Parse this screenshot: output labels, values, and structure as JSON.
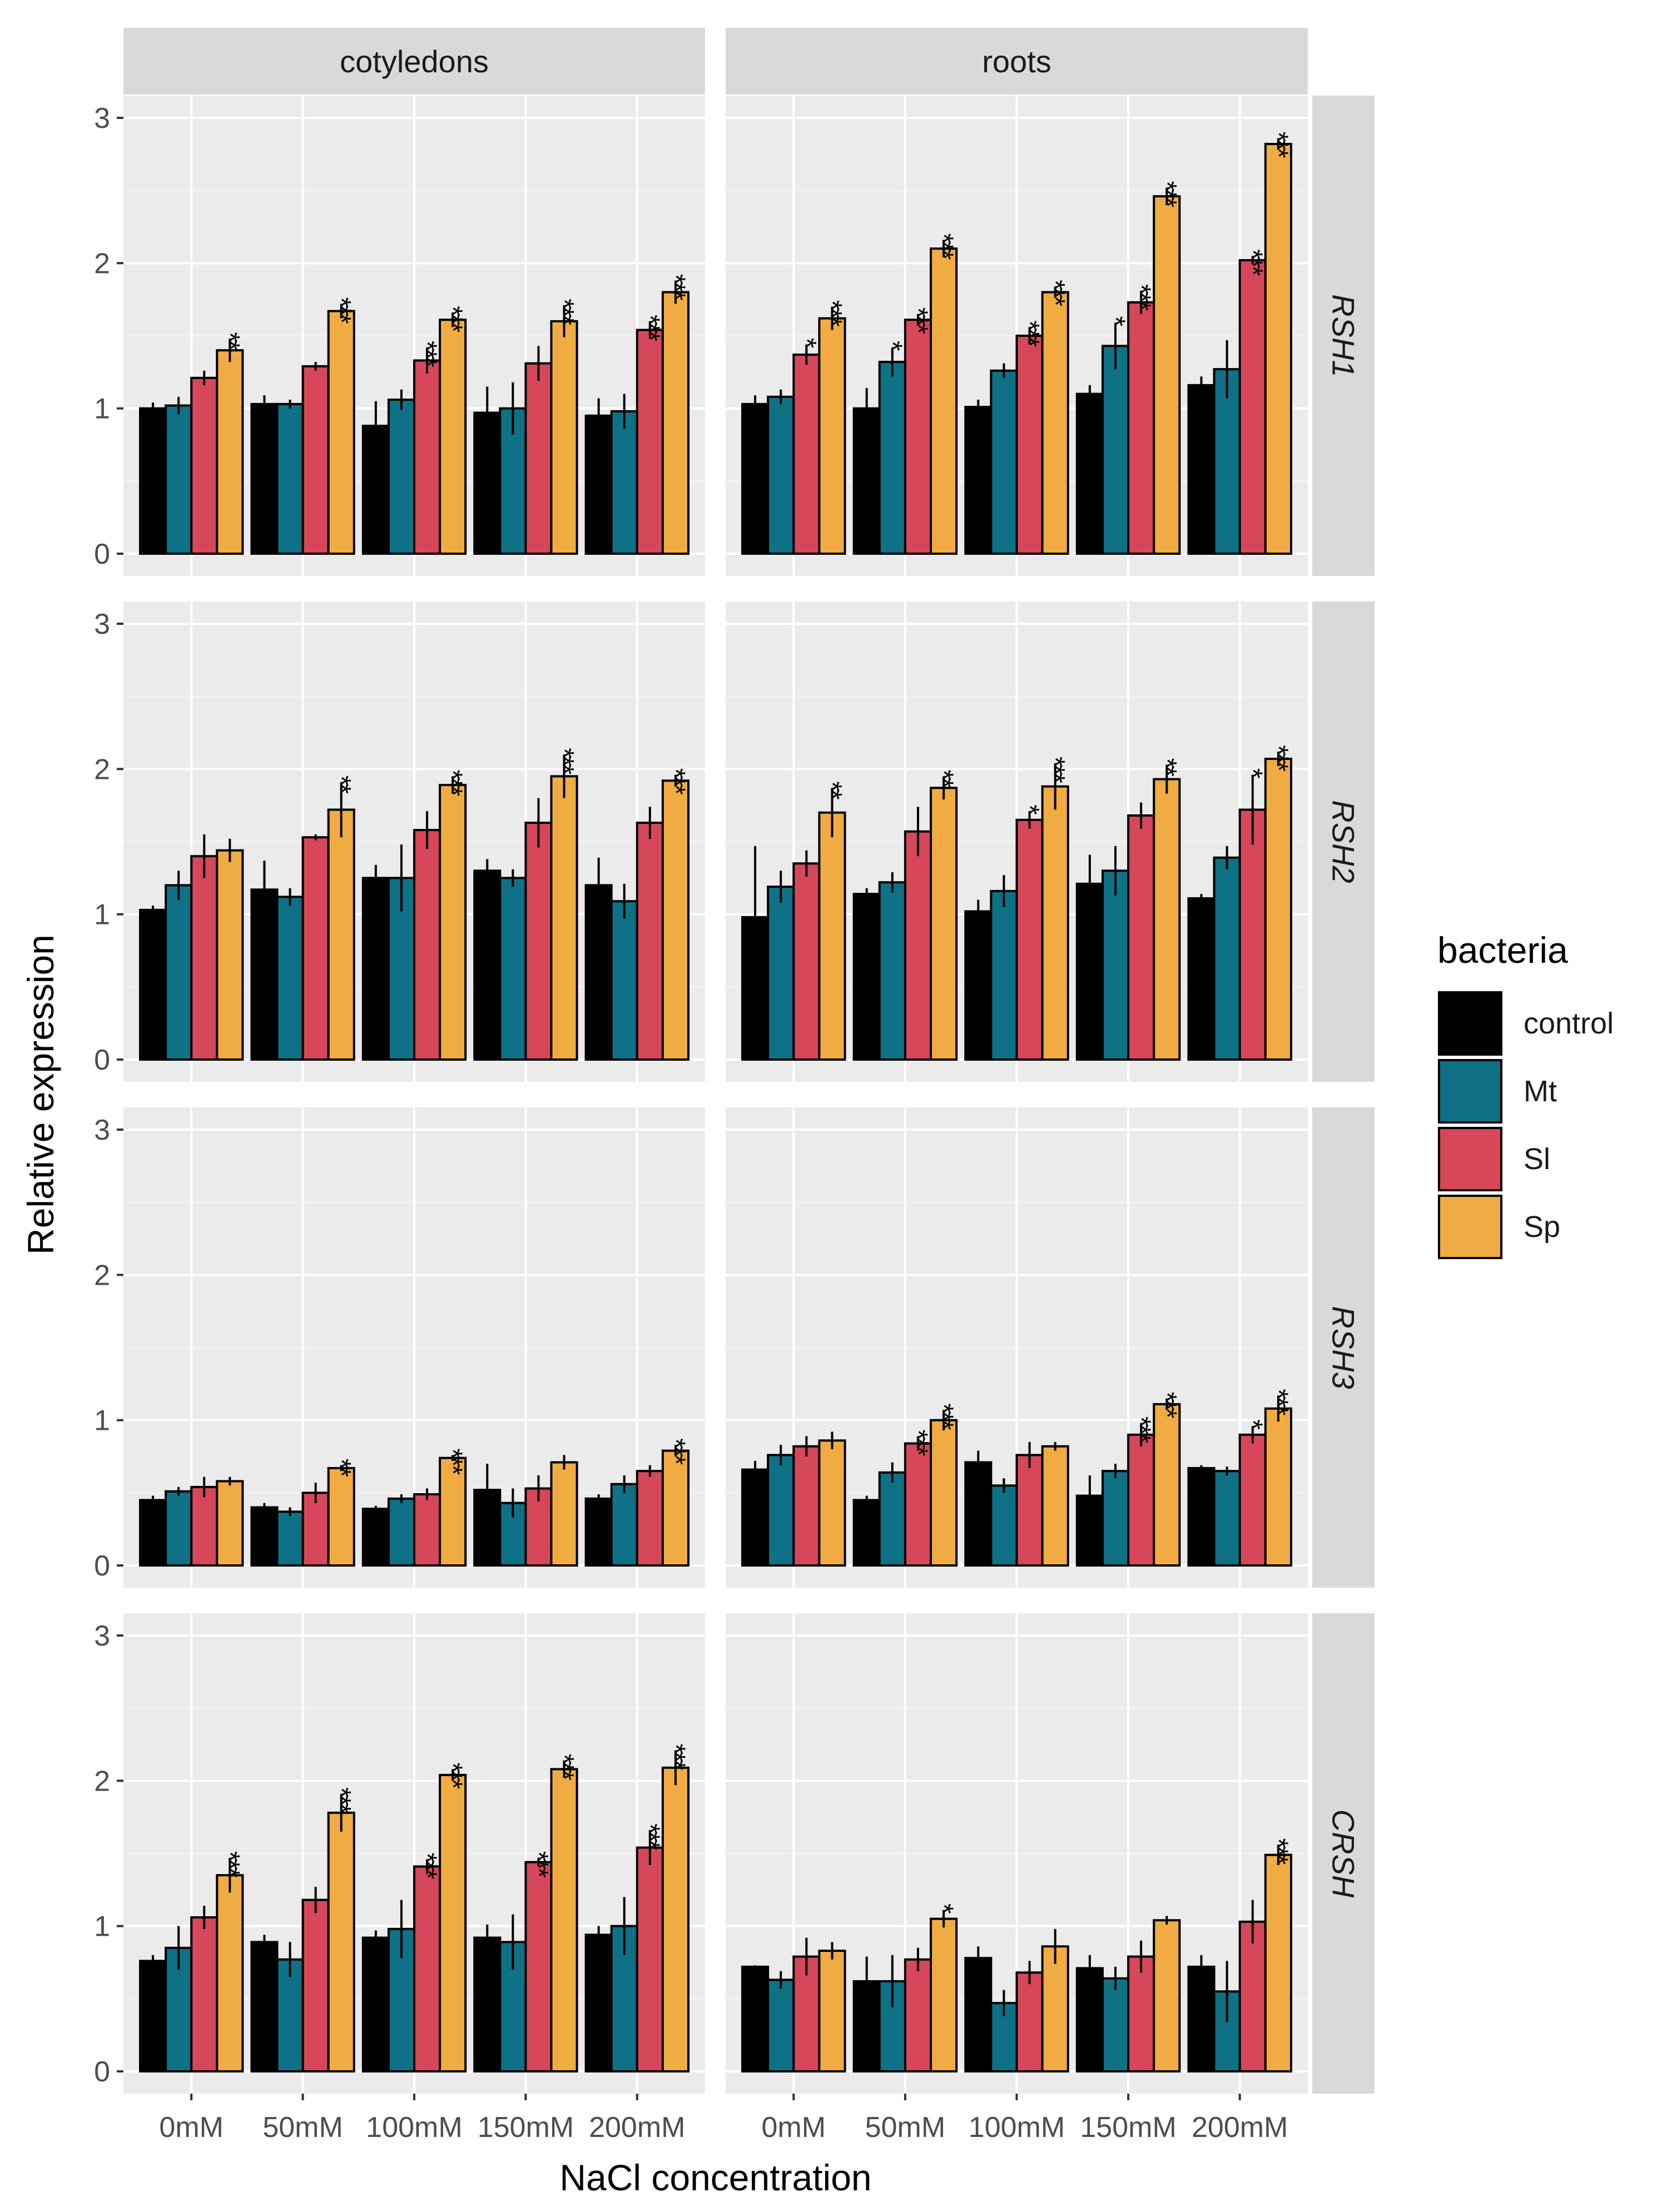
{
  "chart_data": {
    "type": "bar",
    "xlabel": "NaCl concentration",
    "ylabel": "Relative expression",
    "ylim": [
      0,
      3
    ],
    "yticks": [
      "0",
      "1",
      "2",
      "3"
    ],
    "categories": [
      "0mM",
      "50mM",
      "100mM",
      "150mM",
      "200mM"
    ],
    "columns": [
      "cotyledons",
      "roots"
    ],
    "rows": [
      "RSH1",
      "RSH2",
      "RSH3",
      "CRSH"
    ],
    "legend": {
      "title": "bacteria",
      "position": "right",
      "entries": [
        {
          "name": "control",
          "color": "#000000"
        },
        {
          "name": "Mt",
          "color": "#0f7185"
        },
        {
          "name": "Sl",
          "color": "#d6475a"
        },
        {
          "name": "Sp",
          "color": "#f0ac42"
        }
      ]
    },
    "panels": [
      {
        "row": "RSH1",
        "column": "cotyledons",
        "values": [
          [
            1.0,
            1.02,
            1.21,
            1.4
          ],
          [
            1.03,
            1.03,
            1.29,
            1.67
          ],
          [
            0.88,
            1.06,
            1.33,
            1.61
          ],
          [
            0.97,
            1.0,
            1.31,
            1.6
          ],
          [
            0.95,
            0.98,
            1.54,
            1.8
          ]
        ],
        "errors": [
          [
            0.04,
            0.06,
            0.05,
            0.08
          ],
          [
            0.06,
            0.03,
            0.03,
            0.05
          ],
          [
            0.17,
            0.07,
            0.09,
            0.05
          ],
          [
            0.18,
            0.18,
            0.12,
            0.11
          ],
          [
            0.12,
            0.12,
            0.06,
            0.08
          ]
        ],
        "sig": [
          [
            "",
            "",
            "",
            "**"
          ],
          [
            "",
            "",
            "",
            "***"
          ],
          [
            "",
            "",
            "***",
            "***"
          ],
          [
            "",
            "",
            "",
            "***"
          ],
          [
            "",
            "",
            "***",
            "***"
          ]
        ]
      },
      {
        "row": "RSH1",
        "column": "roots",
        "values": [
          [
            1.03,
            1.08,
            1.37,
            1.62
          ],
          [
            1.0,
            1.32,
            1.61,
            2.1
          ],
          [
            1.01,
            1.26,
            1.5,
            1.8
          ],
          [
            1.1,
            1.43,
            1.73,
            2.46
          ],
          [
            1.16,
            1.27,
            2.02,
            2.82
          ]
        ],
        "errors": [
          [
            0.06,
            0.05,
            0.07,
            0.08
          ],
          [
            0.14,
            0.1,
            0.04,
            0.06
          ],
          [
            0.05,
            0.05,
            0.06,
            0.04
          ],
          [
            0.06,
            0.16,
            0.08,
            0.06
          ],
          [
            0.06,
            0.2,
            0.03,
            0.04
          ]
        ],
        "sig": [
          [
            "",
            "",
            "*",
            "***"
          ],
          [
            "",
            "*",
            "***",
            "***"
          ],
          [
            "",
            "",
            "***",
            "***"
          ],
          [
            "",
            "*",
            "***",
            "***"
          ],
          [
            "",
            "",
            "***",
            "***"
          ]
        ]
      },
      {
        "row": "RSH2",
        "column": "cotyledons",
        "values": [
          [
            1.03,
            1.2,
            1.4,
            1.44
          ],
          [
            1.17,
            1.12,
            1.53,
            1.72
          ],
          [
            1.25,
            1.25,
            1.58,
            1.89
          ],
          [
            1.3,
            1.25,
            1.63,
            1.95
          ],
          [
            1.2,
            1.09,
            1.63,
            1.92
          ]
        ],
        "errors": [
          [
            0.03,
            0.1,
            0.15,
            0.08
          ],
          [
            0.2,
            0.06,
            0.02,
            0.19
          ],
          [
            0.09,
            0.23,
            0.13,
            0.06
          ],
          [
            0.08,
            0.06,
            0.17,
            0.15
          ],
          [
            0.19,
            0.12,
            0.11,
            0.04
          ]
        ],
        "sig": [
          [
            "",
            "",
            "",
            ""
          ],
          [
            "",
            "",
            "",
            "**"
          ],
          [
            "",
            "",
            "",
            "***"
          ],
          [
            "",
            "",
            "",
            "***"
          ],
          [
            "",
            "",
            "",
            "***"
          ]
        ]
      },
      {
        "row": "RSH2",
        "column": "roots",
        "values": [
          [
            0.98,
            1.19,
            1.35,
            1.7
          ],
          [
            1.14,
            1.22,
            1.57,
            1.87
          ],
          [
            1.02,
            1.16,
            1.65,
            1.88
          ],
          [
            1.21,
            1.3,
            1.68,
            1.93
          ],
          [
            1.11,
            1.39,
            1.72,
            2.07
          ]
        ],
        "errors": [
          [
            0.49,
            0.11,
            0.09,
            0.17
          ],
          [
            0.04,
            0.07,
            0.17,
            0.08
          ],
          [
            0.08,
            0.11,
            0.06,
            0.16
          ],
          [
            0.2,
            0.17,
            0.09,
            0.1
          ],
          [
            0.03,
            0.08,
            0.24,
            0.05
          ]
        ],
        "sig": [
          [
            "",
            "",
            "",
            "**"
          ],
          [
            "",
            "",
            "",
            "**"
          ],
          [
            "",
            "",
            "*",
            "***"
          ],
          [
            "",
            "",
            "",
            "**"
          ],
          [
            "",
            "",
            "*",
            "***"
          ]
        ]
      },
      {
        "row": "RSH3",
        "column": "cotyledons",
        "values": [
          [
            0.45,
            0.51,
            0.54,
            0.58
          ],
          [
            0.4,
            0.37,
            0.5,
            0.67
          ],
          [
            0.39,
            0.46,
            0.49,
            0.74
          ],
          [
            0.52,
            0.43,
            0.53,
            0.71
          ],
          [
            0.46,
            0.56,
            0.65,
            0.79
          ]
        ],
        "errors": [
          [
            0.03,
            0.03,
            0.07,
            0.03
          ],
          [
            0.03,
            0.03,
            0.07,
            0.02
          ],
          [
            0.02,
            0.03,
            0.04,
            0.02
          ],
          [
            0.18,
            0.1,
            0.09,
            0.05
          ],
          [
            0.03,
            0.06,
            0.04,
            0.04
          ]
        ],
        "sig": [
          [
            "",
            "",
            "",
            ""
          ],
          [
            "",
            "",
            "",
            "**"
          ],
          [
            "",
            "",
            "",
            "***"
          ],
          [
            "",
            "",
            "",
            ""
          ],
          [
            "",
            "",
            "",
            "***"
          ]
        ]
      },
      {
        "row": "RSH3",
        "column": "roots",
        "values": [
          [
            0.66,
            0.76,
            0.82,
            0.86
          ],
          [
            0.45,
            0.64,
            0.84,
            1.0
          ],
          [
            0.71,
            0.55,
            0.76,
            0.82
          ],
          [
            0.48,
            0.65,
            0.9,
            1.11
          ],
          [
            0.67,
            0.65,
            0.9,
            1.08
          ]
        ],
        "errors": [
          [
            0.06,
            0.07,
            0.07,
            0.06
          ],
          [
            0.03,
            0.07,
            0.05,
            0.07
          ],
          [
            0.08,
            0.05,
            0.09,
            0.03
          ],
          [
            0.14,
            0.05,
            0.08,
            0.04
          ],
          [
            0.02,
            0.03,
            0.06,
            0.09
          ]
        ],
        "sig": [
          [
            "",
            "",
            "",
            ""
          ],
          [
            "",
            "",
            "***",
            "***"
          ],
          [
            "",
            "",
            "",
            ""
          ],
          [
            "",
            "",
            "***",
            "***"
          ],
          [
            "",
            "",
            "*",
            "***"
          ]
        ]
      },
      {
        "row": "CRSH",
        "column": "cotyledons",
        "values": [
          [
            0.76,
            0.85,
            1.06,
            1.35
          ],
          [
            0.89,
            0.77,
            1.18,
            1.78
          ],
          [
            0.92,
            0.98,
            1.41,
            2.04
          ],
          [
            0.92,
            0.89,
            1.44,
            2.08
          ],
          [
            0.94,
            1.0,
            1.54,
            2.09
          ]
        ],
        "errors": [
          [
            0.04,
            0.15,
            0.08,
            0.12
          ],
          [
            0.05,
            0.12,
            0.09,
            0.13
          ],
          [
            0.05,
            0.2,
            0.05,
            0.04
          ],
          [
            0.09,
            0.19,
            0.03,
            0.06
          ],
          [
            0.06,
            0.2,
            0.12,
            0.12
          ]
        ],
        "sig": [
          [
            "",
            "",
            "",
            "***"
          ],
          [
            "",
            "",
            "",
            "***"
          ],
          [
            "",
            "",
            "***",
            "***"
          ],
          [
            "",
            "",
            "***",
            "***"
          ],
          [
            "",
            "",
            "***",
            "***"
          ]
        ]
      },
      {
        "row": "CRSH",
        "column": "roots",
        "values": [
          [
            0.72,
            0.63,
            0.79,
            0.83
          ],
          [
            0.62,
            0.62,
            0.77,
            1.05
          ],
          [
            0.78,
            0.47,
            0.68,
            0.86
          ],
          [
            0.71,
            0.64,
            0.79,
            1.04
          ],
          [
            0.72,
            0.55,
            1.03,
            1.49
          ]
        ],
        "errors": [
          [
            0.01,
            0.06,
            0.13,
            0.06
          ],
          [
            0.17,
            0.18,
            0.08,
            0.06
          ],
          [
            0.08,
            0.09,
            0.08,
            0.12
          ],
          [
            0.09,
            0.08,
            0.11,
            0.03
          ],
          [
            0.08,
            0.21,
            0.15,
            0.07
          ]
        ],
        "sig": [
          [
            "",
            "",
            "",
            ""
          ],
          [
            "",
            "",
            "",
            "*"
          ],
          [
            "",
            "",
            "",
            ""
          ],
          [
            "",
            "",
            "",
            ""
          ],
          [
            "",
            "",
            "",
            "***"
          ]
        ]
      }
    ]
  }
}
